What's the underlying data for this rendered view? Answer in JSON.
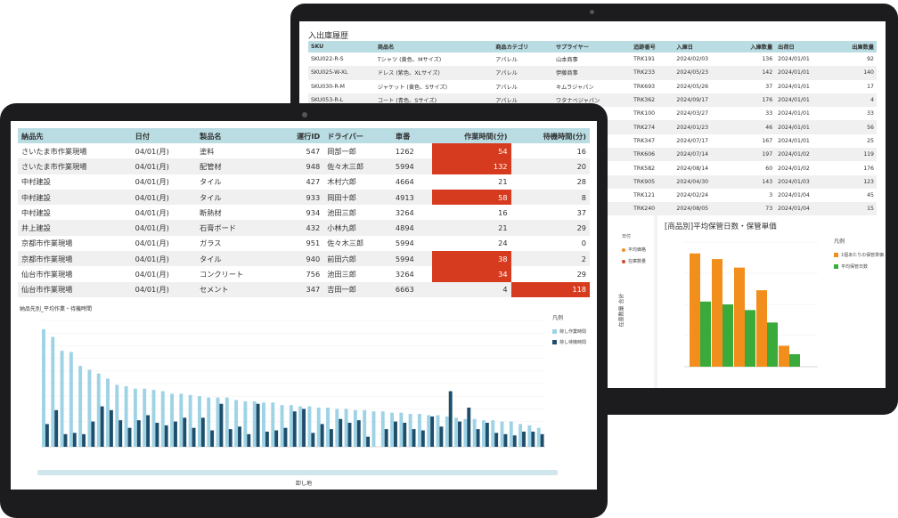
{
  "back": {
    "title": "入出庫履歴",
    "columns": [
      "SKU",
      "商品名",
      "商品カテゴリ",
      "サプライヤー",
      "追跡番号",
      "入庫日",
      "入庫数量",
      "出荷日",
      "出庫数量"
    ],
    "rows": [
      [
        "SKU022-R-S",
        "Tシャツ (黄色、Mサイズ)",
        "アパレル",
        "山本商事",
        "TRK191",
        "2024/02/03",
        "136",
        "2024/01/01",
        "92"
      ],
      [
        "SKU025-W-XL",
        "ドレス (紫色、XLサイズ)",
        "アパレル",
        "伊藤商事",
        "TRK233",
        "2024/05/23",
        "142",
        "2024/01/01",
        "140"
      ],
      [
        "SKU030-R-M",
        "ジャケット (黄色、Sサイズ)",
        "アパレル",
        "キムラジャパン",
        "TRK693",
        "2024/05/26",
        "37",
        "2024/01/01",
        "17"
      ],
      [
        "SKU053-R-L",
        "コート (青色、Sサイズ)",
        "アパレル",
        "ワタナベジャパン",
        "TRK362",
        "2024/09/17",
        "176",
        "2024/01/01",
        "4"
      ],
      [
        "",
        "",
        "",
        "",
        "TRK100",
        "2024/03/27",
        "33",
        "2024/01/01",
        "33"
      ],
      [
        "",
        "",
        "",
        "",
        "TRK274",
        "2024/01/23",
        "46",
        "2024/01/01",
        "56"
      ],
      [
        "",
        "",
        "",
        "",
        "TRK347",
        "2024/07/17",
        "167",
        "2024/01/01",
        "25"
      ],
      [
        "",
        "",
        "",
        "",
        "TRK606",
        "2024/07/14",
        "197",
        "2024/01/02",
        "119"
      ],
      [
        "",
        "",
        "",
        "",
        "TRK582",
        "2024/08/14",
        "60",
        "2024/01/02",
        "176"
      ],
      [
        "",
        "",
        "",
        "",
        "TRK905",
        "2024/04/30",
        "143",
        "2024/01/03",
        "123"
      ],
      [
        "",
        "",
        "",
        "",
        "TRK121",
        "2024/02/24",
        "3",
        "2024/01/04",
        "45"
      ],
      [
        "",
        "",
        "",
        "",
        "TRK240",
        "2024/08/05",
        "73",
        "2024/01/04",
        "15"
      ]
    ],
    "left_legend": {
      "title": "日付",
      "items": [
        "平均価格",
        "在庫数量"
      ]
    },
    "left_axis_label": "在庫数量 合計",
    "colors": {
      "orange": "#f28e1c",
      "green": "#3aaa3a",
      "red": "#d2492a"
    }
  },
  "front": {
    "columns": [
      "納品先",
      "日付",
      "製品名",
      "運行ID",
      "ドライバー",
      "車番",
      "作業時間(分)",
      "待機時間(分)"
    ],
    "rows": [
      [
        "さいたま市作業現場",
        "04/01(月)",
        "塗料",
        "547",
        "岡部一郎",
        "1262",
        "54",
        "16"
      ],
      [
        "さいたま市作業現場",
        "04/01(月)",
        "配管材",
        "948",
        "佐々木三郎",
        "5994",
        "132",
        "20"
      ],
      [
        "中村建設",
        "04/01(月)",
        "タイル",
        "427",
        "木村六郎",
        "4664",
        "21",
        "28"
      ],
      [
        "中村建設",
        "04/01(月)",
        "タイル",
        "933",
        "岡田十郎",
        "4913",
        "58",
        "8"
      ],
      [
        "中村建設",
        "04/01(月)",
        "断熱材",
        "934",
        "池田三郎",
        "3264",
        "16",
        "37"
      ],
      [
        "井上建設",
        "04/01(月)",
        "石膏ボード",
        "432",
        "小林九郎",
        "4894",
        "21",
        "29"
      ],
      [
        "京都市作業現場",
        "04/01(月)",
        "ガラス",
        "951",
        "佐々木三郎",
        "5994",
        "24",
        "0"
      ],
      [
        "京都市作業現場",
        "04/01(月)",
        "タイル",
        "940",
        "前田六郎",
        "5994",
        "38",
        "2"
      ],
      [
        "仙台市作業現場",
        "04/01(月)",
        "コンクリート",
        "756",
        "池田三郎",
        "3264",
        "34",
        "29"
      ],
      [
        "仙台市作業現場",
        "04/01(月)",
        "セメント",
        "347",
        "吉田一郎",
        "6663",
        "4",
        "118"
      ]
    ],
    "hot_work_rows": [
      0,
      1,
      3,
      7,
      8
    ],
    "hot_wait_rows": [
      9
    ],
    "colors": {
      "light": "#9ed3e6",
      "dark": "#1f4e6b",
      "hot": "#d73b1f",
      "header": "#b9dde3"
    },
    "scroll_label": "卸し地"
  },
  "chart_data": [
    {
      "type": "bar",
      "title": "[商品別]平均保管日数・保管単価",
      "legend_title": "凡例",
      "categories": [
        "",
        "",
        "",
        "",
        "",
        ""
      ],
      "series": [
        {
          "name": "1個あたりの保管単価",
          "values": [
            200,
            190,
            175,
            135,
            37,
            0
          ]
        },
        {
          "name": "平均保管日数",
          "values": [
            115,
            110,
            100,
            78,
            22,
            0
          ]
        }
      ],
      "ylim": [
        0,
        220
      ]
    },
    {
      "type": "bar",
      "title": "納品先別_平均作業・待機時間",
      "legend_title": "凡例",
      "series": [
        {
          "name": "荷し作業時間",
          "values": [
            93,
            87,
            76,
            75,
            64,
            61,
            58,
            54,
            49,
            48,
            46,
            46,
            45,
            44,
            42,
            42,
            41,
            40,
            39,
            39,
            39,
            37,
            36,
            36,
            35,
            35,
            33,
            33,
            32,
            32,
            31,
            31,
            30,
            30,
            29,
            29,
            28,
            28,
            27,
            27,
            26,
            26,
            25,
            25,
            24,
            23,
            22,
            22,
            21,
            21,
            20,
            20,
            18,
            17,
            15
          ]
        },
        {
          "name": "荷し待機時間",
          "values": [
            18,
            29,
            10,
            11,
            10,
            20,
            32,
            29,
            21,
            15,
            21,
            25,
            19,
            17,
            20,
            23,
            15,
            23,
            13,
            34,
            14,
            16,
            10,
            34,
            12,
            13,
            15,
            28,
            30,
            11,
            18,
            14,
            22,
            19,
            21,
            8,
            0,
            14,
            20,
            19,
            14,
            13,
            24,
            16,
            44,
            20,
            31,
            14,
            19,
            11,
            10,
            9,
            12,
            12,
            10
          ]
        }
      ],
      "xlabel": "卸し地",
      "ylim": [
        0,
        100
      ]
    }
  ]
}
